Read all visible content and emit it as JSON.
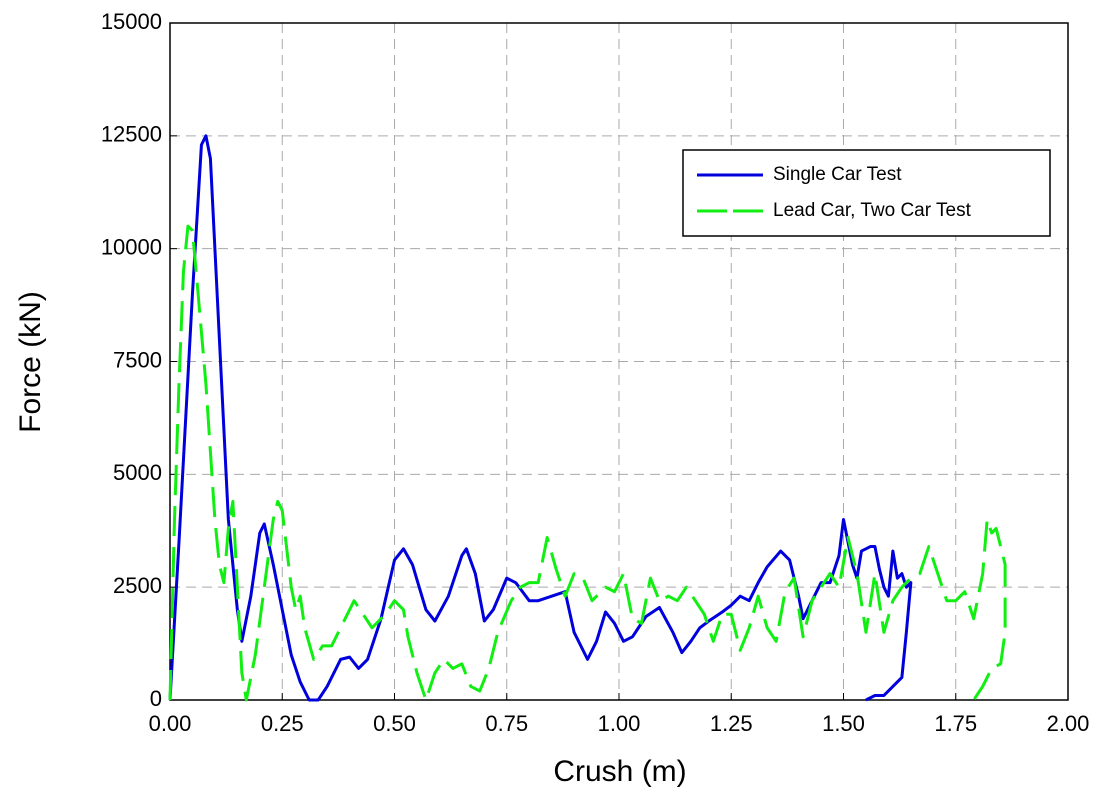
{
  "chart_data": {
    "type": "line",
    "xlabel": "Crush (m)",
    "ylabel": "Force (kN)",
    "xlim": [
      0,
      2
    ],
    "ylim": [
      0,
      15000
    ],
    "xticks": [
      {
        "value": 0,
        "label": "0.00"
      },
      {
        "value": 0.25,
        "label": "0.25"
      },
      {
        "value": 0.5,
        "label": "0.50"
      },
      {
        "value": 0.75,
        "label": "0.75"
      },
      {
        "value": 1,
        "label": "1.00"
      },
      {
        "value": 1.25,
        "label": "1.25"
      },
      {
        "value": 1.5,
        "label": "1.50"
      },
      {
        "value": 1.75,
        "label": "1.75"
      },
      {
        "value": 2,
        "label": "2.00"
      }
    ],
    "yticks": [
      0,
      2500,
      5000,
      7500,
      10000,
      12500,
      15000
    ],
    "grid": true,
    "legend": "upper right",
    "series": [
      {
        "name": "Single Car Test",
        "color": "#0000dd",
        "linestyle": "solid",
        "x": [
          0,
          0.02,
          0.05,
          0.07,
          0.08,
          0.09,
          0.11,
          0.13,
          0.15,
          0.16,
          0.18,
          0.2,
          0.21,
          0.23,
          0.25,
          0.27,
          0.29,
          0.31,
          0.33,
          0.35,
          0.38,
          0.4,
          0.42,
          0.44,
          0.47,
          0.5,
          0.52,
          0.54,
          0.57,
          0.59,
          0.62,
          0.65,
          0.66,
          0.68,
          0.7,
          0.72,
          0.75,
          0.77,
          0.8,
          0.82,
          0.85,
          0.88,
          0.9,
          0.93,
          0.95,
          0.97,
          0.99,
          1.01,
          1.03,
          1.06,
          1.09,
          1.12,
          1.14,
          1.16,
          1.18,
          1.2,
          1.23,
          1.25,
          1.27,
          1.29,
          1.31,
          1.33,
          1.36,
          1.38,
          1.4,
          1.41,
          1.43,
          1.45,
          1.47,
          1.49,
          1.5,
          1.52,
          1.53,
          1.54,
          1.56,
          1.57,
          1.58,
          1.59,
          1.6,
          1.61,
          1.62,
          1.63,
          1.64,
          1.65,
          1.64,
          1.63,
          1.61,
          1.59,
          1.57,
          1.55
        ],
        "values": [
          0,
          3500,
          9000,
          12300,
          12500,
          12000,
          8000,
          4000,
          2000,
          1300,
          2300,
          3700,
          3900,
          3000,
          2000,
          1000,
          400,
          0,
          0,
          300,
          900,
          950,
          700,
          900,
          1800,
          3100,
          3350,
          3000,
          2000,
          1750,
          2300,
          3200,
          3350,
          2800,
          1750,
          2000,
          2700,
          2600,
          2200,
          2200,
          2300,
          2400,
          1500,
          900,
          1300,
          1950,
          1700,
          1300,
          1400,
          1850,
          2050,
          1500,
          1050,
          1300,
          1600,
          1750,
          1950,
          2100,
          2300,
          2200,
          2600,
          2950,
          3300,
          3100,
          2300,
          1800,
          2200,
          2600,
          2600,
          3200,
          4000,
          3000,
          2700,
          3300,
          3400,
          3400,
          2900,
          2500,
          2300,
          3300,
          2700,
          2800,
          2500,
          2600,
          1500,
          500,
          300,
          100,
          100,
          0
        ]
      },
      {
        "name": "Lead Car, Two Car Test",
        "color": "#11ee11",
        "linestyle": "dashed",
        "x": [
          0,
          0.01,
          0.02,
          0.03,
          0.04,
          0.05,
          0.06,
          0.08,
          0.1,
          0.11,
          0.12,
          0.13,
          0.14,
          0.15,
          0.16,
          0.17,
          0.19,
          0.21,
          0.23,
          0.24,
          0.25,
          0.27,
          0.28,
          0.29,
          0.3,
          0.32,
          0.34,
          0.36,
          0.38,
          0.4,
          0.41,
          0.43,
          0.45,
          0.48,
          0.5,
          0.52,
          0.53,
          0.55,
          0.57,
          0.59,
          0.61,
          0.63,
          0.65,
          0.67,
          0.69,
          0.71,
          0.73,
          0.76,
          0.78,
          0.8,
          0.82,
          0.84,
          0.86,
          0.88,
          0.9,
          0.92,
          0.94,
          0.97,
          0.99,
          1.01,
          1.03,
          1.05,
          1.07,
          1.09,
          1.11,
          1.13,
          1.15,
          1.17,
          1.19,
          1.21,
          1.23,
          1.25,
          1.27,
          1.29,
          1.31,
          1.33,
          1.35,
          1.37,
          1.39,
          1.41,
          1.43,
          1.45,
          1.47,
          1.49,
          1.51,
          1.53,
          1.55,
          1.57,
          1.59,
          1.61,
          1.63,
          1.65,
          1.67,
          1.69,
          1.71,
          1.73,
          1.75,
          1.77,
          1.79,
          1.81,
          1.82,
          1.83,
          1.84,
          1.85,
          1.86,
          1.86,
          1.85,
          1.83,
          1.81,
          1.79
        ],
        "values": [
          0,
          4000,
          7000,
          9500,
          10500,
          10400,
          9300,
          7000,
          4000,
          3000,
          2600,
          3800,
          4400,
          2500,
          600,
          0,
          1000,
          2500,
          4000,
          4400,
          4200,
          2500,
          2000,
          2300,
          1600,
          900,
          1200,
          1200,
          1600,
          2000,
          2200,
          1900,
          1600,
          1900,
          2200,
          2000,
          1400,
          600,
          0,
          600,
          900,
          700,
          800,
          300,
          200,
          700,
          1500,
          2200,
          2500,
          2600,
          2600,
          3600,
          2900,
          2300,
          2800,
          2700,
          2200,
          2500,
          2400,
          2800,
          1800,
          1700,
          2700,
          2200,
          2300,
          2200,
          2500,
          2200,
          1900,
          1300,
          1900,
          1900,
          1100,
          1600,
          2300,
          1600,
          1300,
          2400,
          2700,
          1400,
          2200,
          2500,
          2800,
          2500,
          3600,
          2800,
          1500,
          2800,
          1500,
          2200,
          2500,
          2700,
          2800,
          3400,
          2800,
          2200,
          2200,
          2400,
          1800,
          2800,
          4000,
          3700,
          3800,
          3400,
          3000,
          1500,
          800,
          700,
          300,
          0
        ]
      }
    ]
  }
}
